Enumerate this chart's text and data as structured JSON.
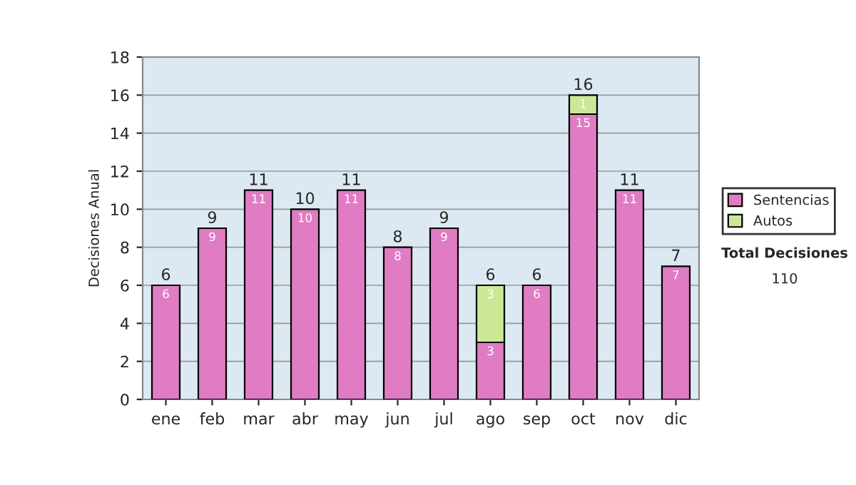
{
  "chart_data": {
    "type": "bar",
    "stacked": true,
    "ylabel": "Decisiones Anual",
    "categories": [
      "ene",
      "feb",
      "mar",
      "abr",
      "may",
      "jun",
      "jul",
      "ago",
      "sep",
      "oct",
      "nov",
      "dic"
    ],
    "series": [
      {
        "name": "Sentencias",
        "color": "#e07cc4",
        "values": [
          6,
          9,
          11,
          10,
          11,
          8,
          9,
          3,
          6,
          15,
          11,
          7
        ],
        "value_labels": [
          "6",
          "9",
          "11",
          "10",
          "11",
          "8",
          "9",
          "3",
          "6",
          "15",
          "11",
          "7"
        ]
      },
      {
        "name": "Autos",
        "color": "#cce896",
        "values": [
          null,
          null,
          null,
          null,
          null,
          null,
          null,
          3,
          null,
          1,
          null,
          null
        ],
        "value_labels": [
          null,
          null,
          null,
          null,
          null,
          null,
          null,
          "3",
          null,
          "1",
          null,
          null
        ]
      }
    ],
    "totals": [
      "6",
      "9",
      "11",
      "10",
      "11",
      "8",
      "9",
      "6",
      "6",
      "16",
      "11",
      "7"
    ],
    "ylim": [
      0,
      18
    ],
    "yticks": [
      0,
      2,
      4,
      6,
      8,
      10,
      12,
      14,
      16,
      18
    ],
    "grid": "y",
    "legend": "right",
    "annotations": [
      "Total Decisiones",
      "110"
    ]
  }
}
